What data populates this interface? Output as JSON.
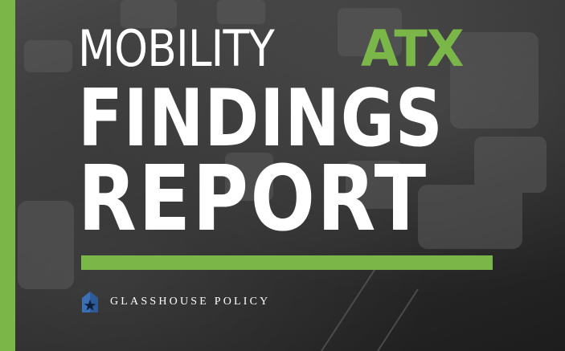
{
  "cover": {
    "title_part1": "MOBILITY",
    "title_part2": "ATX",
    "title_line2": "FINDINGS",
    "title_line3": "REPORT"
  },
  "brand": {
    "name": "GLASSHOUSE POLICY",
    "logo_icon": "house-star-icon"
  },
  "colors": {
    "accent_green": "#7ab648",
    "text_white": "#ffffff",
    "background_dark": "#2a2a2a",
    "logo_blue": "#3c6fb4"
  }
}
